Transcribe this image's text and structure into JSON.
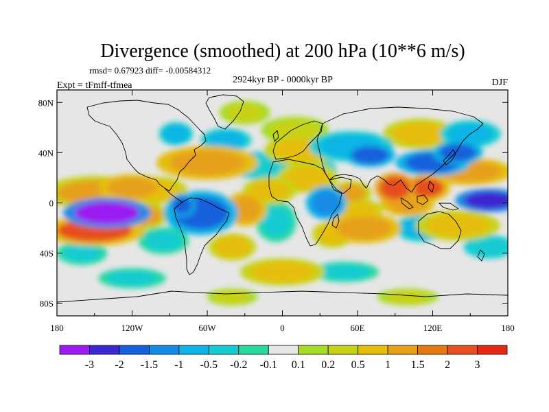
{
  "title": "Divergence (smoothed) at 200 hPa (10**6 m/s)",
  "stats": "rmsd= 0.67923 diff= -0.00584312",
  "period": "2924kyr BP - 0000kyr BP",
  "experiment": "Expt = tFmff-tfmea",
  "season": "DJF",
  "map_data": {
    "type": "global-contour-map",
    "projection": "cylindrical equidistant",
    "lon_ticks": [
      {
        "lon": -180,
        "label": "180"
      },
      {
        "lon": -120,
        "label": "120W"
      },
      {
        "lon": -60,
        "label": "60W"
      },
      {
        "lon": 0,
        "label": "0"
      },
      {
        "lon": 60,
        "label": "60E"
      },
      {
        "lon": 120,
        "label": "120E"
      },
      {
        "lon": 180,
        "label": "180"
      }
    ],
    "lat_ticks": [
      {
        "lat": 80,
        "label": "80N"
      },
      {
        "lat": 40,
        "label": "40N"
      },
      {
        "lat": 0,
        "label": "0"
      },
      {
        "lat": -40,
        "label": "40S"
      },
      {
        "lat": -80,
        "label": "80S"
      }
    ],
    "lat_range": [
      -90,
      90
    ],
    "lon_range": [
      -180,
      180
    ],
    "background_color": "#e6e6e6"
  },
  "colorbar": {
    "colors": [
      "#9a1cf0",
      "#3c28d2",
      "#1560dc",
      "#148ce6",
      "#10b4e6",
      "#14ccd2",
      "#28d8a0",
      "#e6e6e6",
      "#a4dc28",
      "#c8d214",
      "#e6be0a",
      "#e6a01a",
      "#e67814",
      "#e6501e",
      "#e62814"
    ],
    "labels": [
      "-3",
      "-2",
      "-1.5",
      "-1",
      "-0.5",
      "-0.2",
      "-0.1",
      "0.1",
      "0.2",
      "0.5",
      "1",
      "1.5",
      "2",
      "3"
    ]
  },
  "anomalies": [
    {
      "lon": -140,
      "lat": -8,
      "v": -3.2,
      "rx": 26,
      "ry": 9
    },
    {
      "lon": -150,
      "lat": -22,
      "v": 2.2,
      "rx": 30,
      "ry": 9
    },
    {
      "lon": -150,
      "lat": 8,
      "v": 1.1,
      "rx": 30,
      "ry": 10
    },
    {
      "lon": -120,
      "lat": 12,
      "v": 1.3,
      "rx": 20,
      "ry": 8
    },
    {
      "lon": -100,
      "lat": 10,
      "v": 0.8,
      "rx": 18,
      "ry": 8
    },
    {
      "lon": -110,
      "lat": -10,
      "v": 1.0,
      "rx": 14,
      "ry": 8
    },
    {
      "lon": -65,
      "lat": -8,
      "v": -1.6,
      "rx": 22,
      "ry": 13
    },
    {
      "lon": -80,
      "lat": -2,
      "v": -2.0,
      "rx": 8,
      "ry": 7
    },
    {
      "lon": -60,
      "lat": 32,
      "v": 1.2,
      "rx": 30,
      "ry": 10
    },
    {
      "lon": -45,
      "lat": 50,
      "v": -0.6,
      "rx": 15,
      "ry": 7
    },
    {
      "lon": -20,
      "lat": 30,
      "v": -0.5,
      "rx": 18,
      "ry": 8
    },
    {
      "lon": -30,
      "lat": -5,
      "v": 1.4,
      "rx": 13,
      "ry": 10
    },
    {
      "lon": -5,
      "lat": -15,
      "v": -0.3,
      "rx": 12,
      "ry": 12
    },
    {
      "lon": -10,
      "lat": 10,
      "v": 0.9,
      "rx": 16,
      "ry": 8
    },
    {
      "lon": 15,
      "lat": 42,
      "v": 0.6,
      "rx": 22,
      "ry": 9
    },
    {
      "lon": 10,
      "lat": 58,
      "v": 0.4,
      "rx": 20,
      "ry": 8
    },
    {
      "lon": 20,
      "lat": 20,
      "v": 0.7,
      "rx": 18,
      "ry": 9
    },
    {
      "lon": 35,
      "lat": 0,
      "v": -1.2,
      "rx": 12,
      "ry": 10
    },
    {
      "lon": 30,
      "lat": 25,
      "v": -0.5,
      "rx": 10,
      "ry": 8
    },
    {
      "lon": 55,
      "lat": 8,
      "v": 1.0,
      "rx": 12,
      "ry": 7
    },
    {
      "lon": 55,
      "lat": 45,
      "v": -0.9,
      "rx": 25,
      "ry": 9
    },
    {
      "lon": 70,
      "lat": 38,
      "v": -1.8,
      "rx": 15,
      "ry": 7
    },
    {
      "lon": 40,
      "lat": -25,
      "v": 0.8,
      "rx": 12,
      "ry": 8
    },
    {
      "lon": 65,
      "lat": -20,
      "v": 1.2,
      "rx": 22,
      "ry": 9
    },
    {
      "lon": 60,
      "lat": -5,
      "v": 0.5,
      "rx": 15,
      "ry": 6
    },
    {
      "lon": 90,
      "lat": 12,
      "v": 2.5,
      "rx": 12,
      "ry": 9
    },
    {
      "lon": 115,
      "lat": 12,
      "v": 2.2,
      "rx": 14,
      "ry": 8
    },
    {
      "lon": 100,
      "lat": 0,
      "v": 1.2,
      "rx": 16,
      "ry": 8
    },
    {
      "lon": 120,
      "lat": 32,
      "v": -1.6,
      "rx": 22,
      "ry": 8
    },
    {
      "lon": 140,
      "lat": 40,
      "v": -1.8,
      "rx": 15,
      "ry": 7
    },
    {
      "lon": 110,
      "lat": 55,
      "v": 0.6,
      "rx": 22,
      "ry": 9
    },
    {
      "lon": 150,
      "lat": 55,
      "v": -0.6,
      "rx": 18,
      "ry": 8
    },
    {
      "lon": 165,
      "lat": 2,
      "v": -2.5,
      "rx": 20,
      "ry": 7
    },
    {
      "lon": 150,
      "lat": 25,
      "v": 1.2,
      "rx": 25,
      "ry": 8
    },
    {
      "lon": 140,
      "lat": -18,
      "v": 0.8,
      "rx": 25,
      "ry": 9
    },
    {
      "lon": 110,
      "lat": -20,
      "v": -0.7,
      "rx": 15,
      "ry": 8
    },
    {
      "lon": 165,
      "lat": -35,
      "v": -0.5,
      "rx": 15,
      "ry": 7
    },
    {
      "lon": -95,
      "lat": -30,
      "v": -0.3,
      "rx": 15,
      "ry": 8
    },
    {
      "lon": -40,
      "lat": -35,
      "v": 0.9,
      "rx": 14,
      "ry": 8
    },
    {
      "lon": 0,
      "lat": -55,
      "v": 0.5,
      "rx": 25,
      "ry": 8
    },
    {
      "lon": 50,
      "lat": -55,
      "v": -0.3,
      "rx": 20,
      "ry": 6
    },
    {
      "lon": -120,
      "lat": -60,
      "v": -0.3,
      "rx": 20,
      "ry": 6
    },
    {
      "lon": -160,
      "lat": -40,
      "v": -0.4,
      "rx": 15,
      "ry": 7
    },
    {
      "lon": -30,
      "lat": 72,
      "v": 0.3,
      "rx": 15,
      "ry": 7
    },
    {
      "lon": 100,
      "lat": -75,
      "v": 0.3,
      "rx": 18,
      "ry": 5
    },
    {
      "lon": -40,
      "lat": -75,
      "v": 0.3,
      "rx": 15,
      "ry": 5
    },
    {
      "lon": -85,
      "lat": 55,
      "v": -0.6,
      "rx": 10,
      "ry": 7
    }
  ]
}
